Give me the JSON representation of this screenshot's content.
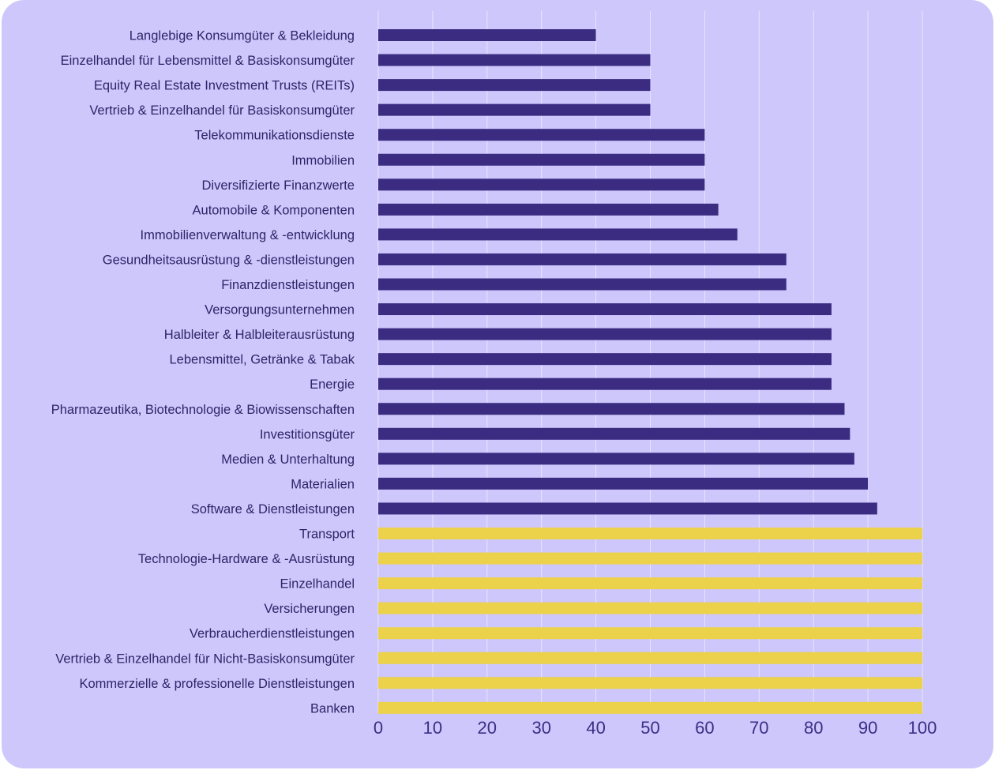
{
  "colors": {
    "background": "#cdc7fb",
    "bar_default": "#3b2c82",
    "bar_highlight": "#ecd24a",
    "grid": "#ffffff",
    "text": "#2e2468"
  },
  "chart_data": {
    "type": "bar",
    "orientation": "horizontal",
    "title": "",
    "xlabel": "",
    "ylabel": "",
    "xlim": [
      0,
      100
    ],
    "x_ticks": [
      0,
      10,
      20,
      30,
      40,
      50,
      60,
      70,
      80,
      90,
      100
    ],
    "grid": true,
    "categories": [
      "Langlebige Konsumgüter & Bekleidung",
      "Einzelhandel für Lebensmittel & Basiskonsumgüter",
      "Equity Real Estate Investment Trusts (REITs)",
      "Vertrieb & Einzelhandel für Basiskonsumgüter",
      "Telekommunikationsdienste",
      "Immobilien",
      "Diversifizierte Finanzwerte",
      "Automobile & Komponenten",
      "Immobilienverwaltung & -entwicklung",
      "Gesundheitsausrüstung & -dienstleistungen",
      "Finanzdienstleistungen",
      "Versorgungsunternehmen",
      "Halbleiter & Halbleiterausrüstung",
      "Lebensmittel, Getränke & Tabak",
      "Energie",
      "Pharmazeutika, Biotechnologie & Biowissenschaften",
      "Investitionsgüter",
      "Medien & Unterhaltung",
      "Materialien",
      "Software & Dienstleistungen",
      "Transport",
      "Technologie-Hardware & -Ausrüstung",
      "Einzelhandel",
      "Versicherungen",
      "Verbraucherdienstleistungen",
      "Vertrieb & Einzelhandel für Nicht-Basiskonsumgüter",
      "Kommerzielle & professionelle Dienstleistungen",
      "Banken"
    ],
    "values": [
      40,
      50,
      50,
      50,
      60,
      60,
      60,
      62.5,
      66,
      75,
      75,
      83.3,
      83.3,
      83.3,
      83.3,
      85.7,
      86.7,
      87.5,
      90,
      91.7,
      100,
      100,
      100,
      100,
      100,
      100,
      100,
      100
    ],
    "highlight": [
      false,
      false,
      false,
      false,
      false,
      false,
      false,
      false,
      false,
      false,
      false,
      false,
      false,
      false,
      false,
      false,
      false,
      false,
      false,
      false,
      true,
      true,
      true,
      true,
      true,
      true,
      true,
      true
    ]
  }
}
